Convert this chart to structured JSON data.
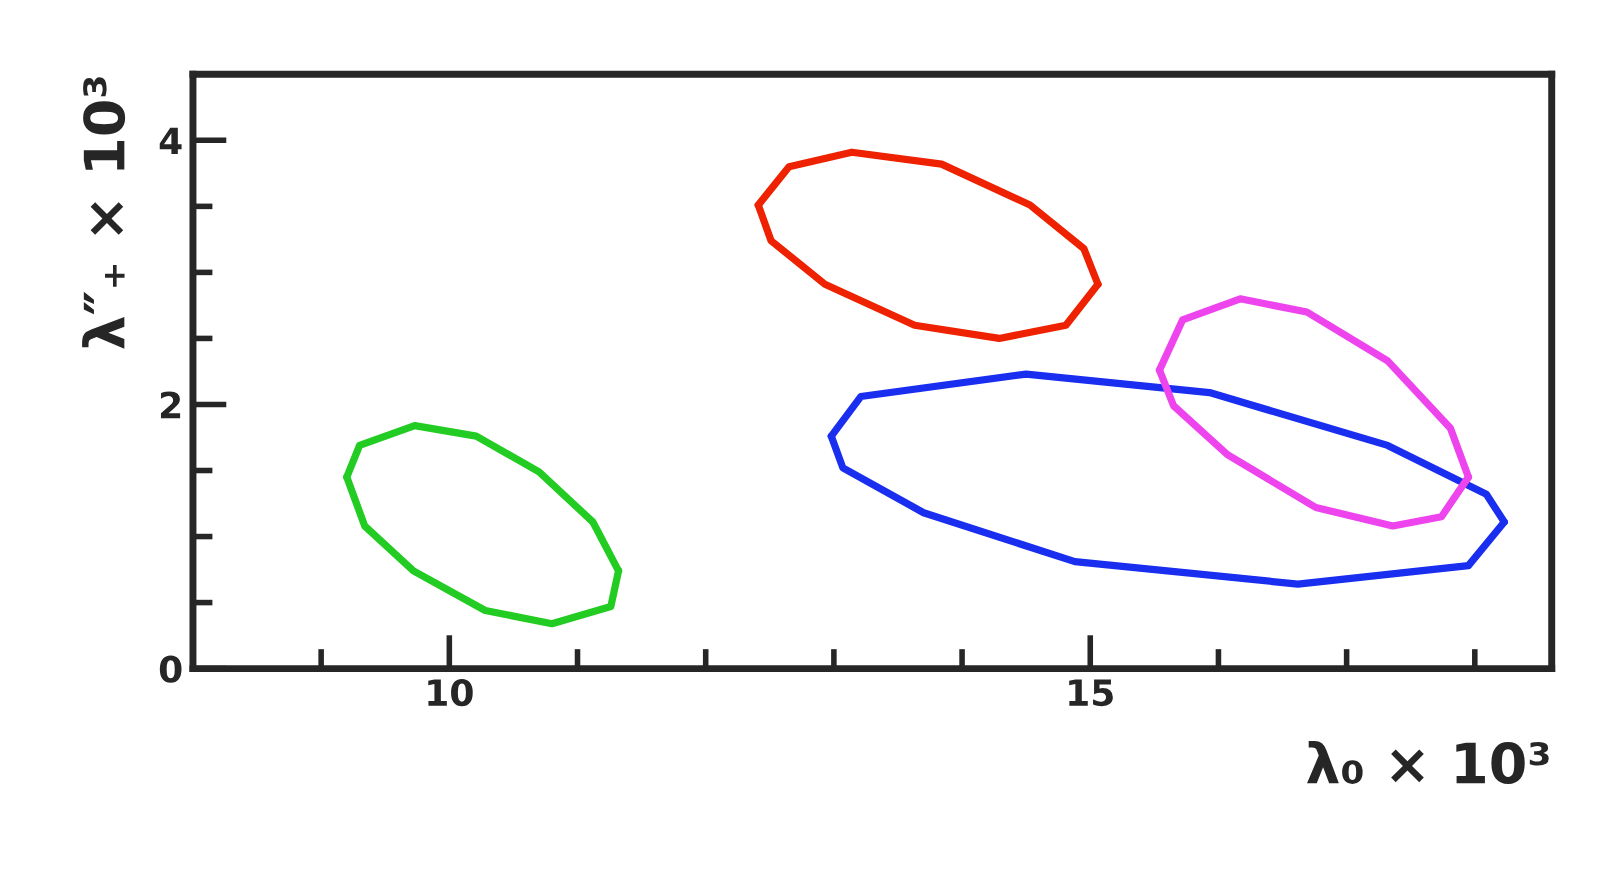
{
  "chart_data": {
    "type": "line",
    "xlabel": "λ₀ × 10³",
    "ylabel": "λ″₊ × 10³",
    "xlim": [
      8,
      18.6
    ],
    "ylim": [
      0,
      4.5
    ],
    "xticks": [
      {
        "value": 9,
        "label": null
      },
      10,
      {
        "value": 11,
        "label": null
      },
      {
        "value": 12,
        "label": null
      },
      {
        "value": 13,
        "label": null
      },
      {
        "value": 14,
        "label": null
      },
      15,
      {
        "value": 16,
        "label": null
      },
      {
        "value": 17,
        "label": null
      },
      {
        "value": 18,
        "label": null
      }
    ],
    "yticks": [
      0,
      {
        "value": 0.5,
        "label": null
      },
      {
        "value": 1,
        "label": null
      },
      {
        "value": 1.5,
        "label": null
      },
      2,
      {
        "value": 2.5,
        "label": null
      },
      {
        "value": 3,
        "label": null
      },
      {
        "value": 3.5,
        "label": null
      },
      4
    ],
    "grid": false,
    "marker": "none",
    "line_style": "solid",
    "series": [
      {
        "color": "#22cc22",
        "x": [
          9.2,
          9.3,
          9.73,
          10.21,
          10.7,
          11.12,
          11.32
        ],
        "values": [
          1.45,
          1.69,
          1.84,
          1.76,
          1.49,
          1.11,
          0.74
        ]
      },
      {
        "color": "#22cc22",
        "x": [
          9.2,
          9.34,
          9.72,
          10.28,
          10.8,
          11.26,
          11.32
        ],
        "values": [
          1.45,
          1.08,
          0.74,
          0.44,
          0.34,
          0.47,
          0.74
        ]
      },
      {
        "color": "#ee2200",
        "x": [
          12.41,
          12.65,
          13.14,
          13.84,
          14.53,
          14.95,
          15.06
        ],
        "values": [
          3.51,
          3.8,
          3.91,
          3.82,
          3.51,
          3.18,
          2.91
        ]
      },
      {
        "color": "#ee2200",
        "x": [
          12.41,
          12.51,
          12.93,
          13.63,
          14.29,
          14.81,
          15.06
        ],
        "values": [
          3.51,
          3.24,
          2.91,
          2.6,
          2.5,
          2.6,
          2.91
        ]
      },
      {
        "color": "#1a2ef0",
        "x": [
          12.98,
          13.21,
          14.5,
          15.93,
          17.32,
          18.09,
          18.23
        ],
        "values": [
          1.76,
          2.06,
          2.23,
          2.09,
          1.69,
          1.32,
          1.11
        ]
      },
      {
        "color": "#1a2ef0",
        "x": [
          12.98,
          13.07,
          13.7,
          14.88,
          16.62,
          17.95,
          18.23
        ],
        "values": [
          1.76,
          1.52,
          1.18,
          0.81,
          0.64,
          0.78,
          1.11
        ]
      },
      {
        "color": "#ee44ee",
        "x": [
          15.54,
          15.72,
          16.17,
          16.69,
          17.32,
          17.81,
          17.95
        ],
        "values": [
          2.26,
          2.64,
          2.8,
          2.7,
          2.33,
          1.82,
          1.45
        ]
      },
      {
        "color": "#ee44ee",
        "x": [
          15.54,
          15.65,
          16.07,
          16.76,
          17.36,
          17.74,
          17.95
        ],
        "values": [
          2.26,
          1.99,
          1.62,
          1.22,
          1.08,
          1.15,
          1.45
        ]
      }
    ]
  }
}
